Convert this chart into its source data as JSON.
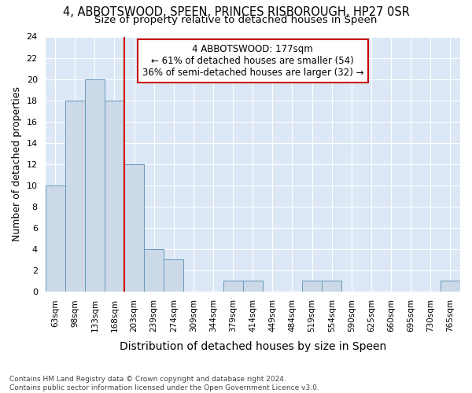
{
  "title": "4, ABBOTSWOOD, SPEEN, PRINCES RISBOROUGH, HP27 0SR",
  "subtitle": "Size of property relative to detached houses in Speen",
  "xlabel": "Distribution of detached houses by size in Speen",
  "ylabel": "Number of detached properties",
  "footnote": "Contains HM Land Registry data © Crown copyright and database right 2024.\nContains public sector information licensed under the Open Government Licence v3.0.",
  "bar_labels": [
    "63sqm",
    "98sqm",
    "133sqm",
    "168sqm",
    "203sqm",
    "239sqm",
    "274sqm",
    "309sqm",
    "344sqm",
    "379sqm",
    "414sqm",
    "449sqm",
    "484sqm",
    "519sqm",
    "554sqm",
    "590sqm",
    "625sqm",
    "660sqm",
    "695sqm",
    "730sqm",
    "765sqm"
  ],
  "bar_values": [
    10,
    18,
    20,
    18,
    12,
    4,
    3,
    0,
    0,
    1,
    1,
    0,
    0,
    1,
    1,
    0,
    0,
    0,
    0,
    0,
    1
  ],
  "bar_color": "#ccd9e8",
  "bar_edgecolor": "#6699bb",
  "subject_bar_index": 3,
  "subject_line_color": "#cc0000",
  "annotation_text": "4 ABBOTSWOOD: 177sqm\n← 61% of detached houses are smaller (54)\n36% of semi-detached houses are larger (32) →",
  "annotation_box_edgecolor": "#cc0000",
  "annotation_box_facecolor": "#ffffff",
  "ylim": [
    0,
    24
  ],
  "yticks": [
    0,
    2,
    4,
    6,
    8,
    10,
    12,
    14,
    16,
    18,
    20,
    22,
    24
  ],
  "bg_color": "#dce8f5",
  "fig_bg": "#ffffff",
  "title_fontsize": 10.5,
  "subtitle_fontsize": 9.5,
  "footnote_fontsize": 6.5,
  "ylabel_fontsize": 9,
  "xlabel_fontsize": 10
}
